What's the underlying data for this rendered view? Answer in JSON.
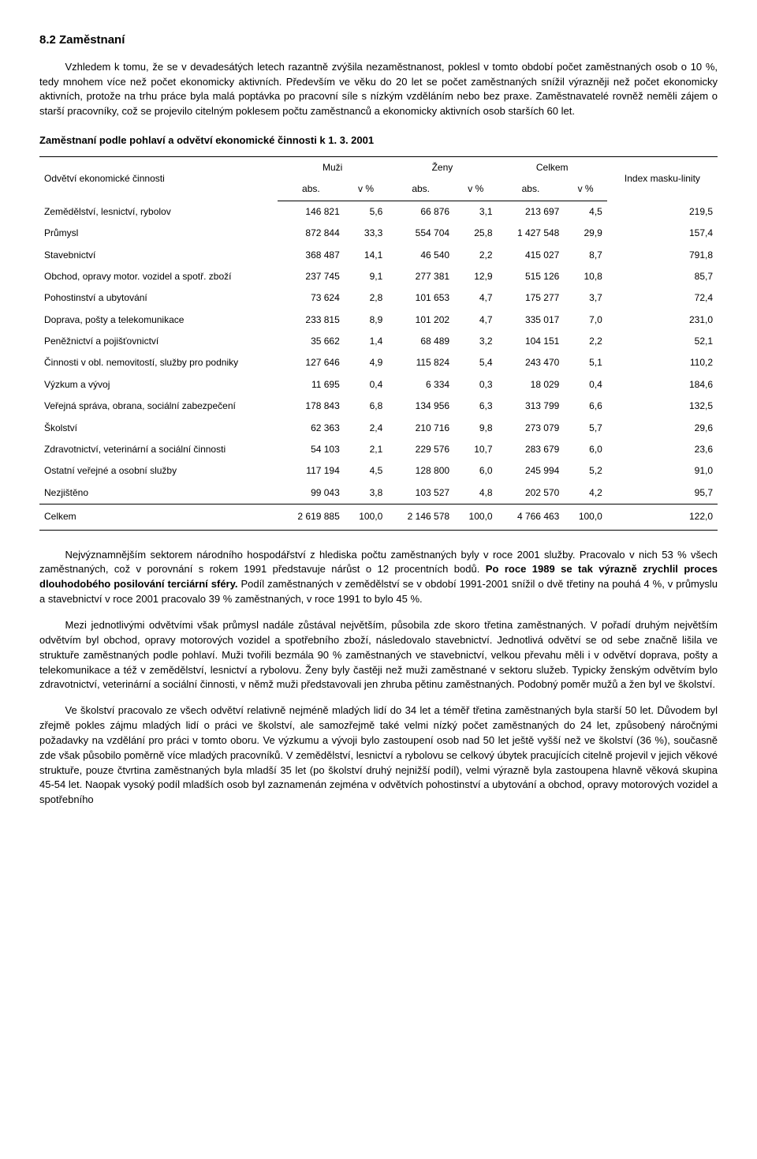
{
  "heading": "8.2 Zaměstnaní",
  "para1_plain": "Vzhledem k tomu, že se v devadesátých letech razantně zvýšila nezaměstnanost, poklesl v tomto období počet zaměstnaných osob o 10 %, tedy mnohem více než počet ekonomicky aktivních. Především ve věku do 20 let se počet zaměstnaných snížil výrazněji než počet ekonomicky aktivních, protože na trhu práce byla malá poptávka po pracovní síle s nízkým vzděláním nebo bez praxe. Zaměstnavatelé rovněž neměli zájem o starší pracovníky, což se projevilo citelným poklesem počtu zaměstnanců a ekonomicky aktivních osob starších 60 let.",
  "table_title": "Zaměstnaní podle pohlaví a odvětví ekonomické činnosti k 1. 3. 2001",
  "table": {
    "col_label": "Odvětví ekonomické činnosti",
    "group_headers": [
      "Muži",
      "Ženy",
      "Celkem"
    ],
    "sub_headers": [
      "abs.",
      "v %",
      "abs.",
      "v %",
      "abs.",
      "v %"
    ],
    "index_header": "Index masku-linity",
    "rows": [
      {
        "label": "Zemědělství, lesnictví, rybolov",
        "cells": [
          "146 821",
          "5,6",
          "66 876",
          "3,1",
          "213 697",
          "4,5",
          "219,5"
        ]
      },
      {
        "label": "Průmysl",
        "cells": [
          "872 844",
          "33,3",
          "554 704",
          "25,8",
          "1 427 548",
          "29,9",
          "157,4"
        ]
      },
      {
        "label": "Stavebnictví",
        "cells": [
          "368 487",
          "14,1",
          "46 540",
          "2,2",
          "415 027",
          "8,7",
          "791,8"
        ]
      },
      {
        "label": "Obchod, opravy motor. vozidel a spotř. zboží",
        "cells": [
          "237 745",
          "9,1",
          "277 381",
          "12,9",
          "515 126",
          "10,8",
          "85,7"
        ]
      },
      {
        "label": "Pohostinství a ubytování",
        "cells": [
          "73 624",
          "2,8",
          "101 653",
          "4,7",
          "175 277",
          "3,7",
          "72,4"
        ]
      },
      {
        "label": "Doprava, pošty a telekomunikace",
        "cells": [
          "233 815",
          "8,9",
          "101 202",
          "4,7",
          "335 017",
          "7,0",
          "231,0"
        ]
      },
      {
        "label": "Peněžnictví a pojišťovnictví",
        "cells": [
          "35 662",
          "1,4",
          "68 489",
          "3,2",
          "104 151",
          "2,2",
          "52,1"
        ]
      },
      {
        "label": "Činnosti v obl. nemovitostí, služby pro podniky",
        "cells": [
          "127 646",
          "4,9",
          "115 824",
          "5,4",
          "243 470",
          "5,1",
          "110,2"
        ]
      },
      {
        "label": "Výzkum a vývoj",
        "cells": [
          "11 695",
          "0,4",
          "6 334",
          "0,3",
          "18 029",
          "0,4",
          "184,6"
        ]
      },
      {
        "label": "Veřejná správa, obrana, sociální zabezpečení",
        "cells": [
          "178 843",
          "6,8",
          "134 956",
          "6,3",
          "313 799",
          "6,6",
          "132,5"
        ]
      },
      {
        "label": "Školství",
        "cells": [
          "62 363",
          "2,4",
          "210 716",
          "9,8",
          "273 079",
          "5,7",
          "29,6"
        ]
      },
      {
        "label": "Zdravotnictví, veterinární a sociální činnosti",
        "cells": [
          "54 103",
          "2,1",
          "229 576",
          "10,7",
          "283 679",
          "6,0",
          "23,6"
        ]
      },
      {
        "label": "Ostatní veřejné a osobní služby",
        "cells": [
          "117 194",
          "4,5",
          "128 800",
          "6,0",
          "245 994",
          "5,2",
          "91,0"
        ]
      },
      {
        "label": "Nezjištěno",
        "cells": [
          "99 043",
          "3,8",
          "103 527",
          "4,8",
          "202 570",
          "4,2",
          "95,7"
        ]
      }
    ],
    "total": {
      "label": "Celkem",
      "cells": [
        "2 619 885",
        "100,0",
        "2 146 578",
        "100,0",
        "4 766 463",
        "100,0",
        "122,0"
      ]
    }
  },
  "para2_pre": "Nejvýznamnějším sektorem národního hospodářství z hlediska počtu zaměstnaných byly v roce 2001 služby. Pracovalo v nich 53 % všech zaměstnaných, což v porovnání s rokem 1991 představuje nárůst o 12 procentních bodů. ",
  "para2_bold": "Po roce 1989 se tak výrazně zrychlil proces dlouhodobého posilování terciární sféry.",
  "para2_post": " Podíl zaměstnaných v zemědělství se v období 1991-2001 snížil o dvě třetiny na pouhá 4 %, v průmyslu a stavebnictví v roce 2001 pracovalo 39 % zaměstnaných, v roce 1991 to bylo 45 %.",
  "para3": "Mezi jednotlivými odvětvími však průmysl nadále zůstával největším, působila zde skoro třetina zaměstnaných. V pořadí druhým největším odvětvím byl obchod, opravy motorových vozidel a spotřebního zboží, následovalo stavebnictví. Jednotlivá odvětví se od sebe značně lišila ve struktuře zaměstnaných podle pohlaví. Muži tvořili bezmála 90 % zaměstnaných ve stavebnictví, velkou převahu měli i v odvětví doprava, pošty a telekomunikace a též v zemědělství, lesnictví a rybolovu. Ženy byly častěji než muži zaměstnané v sektoru služeb. Typicky ženským odvětvím bylo zdravotnictví, veterinární a sociální činnosti, v němž muži představovali jen zhruba pětinu zaměstnaných. Podobný poměr mužů a žen byl ve školství.",
  "para4": "Ve školství pracovalo ze všech odvětví relativně nejméně mladých lidí do 34 let a téměř třetina zaměstnaných byla starší 50 let. Důvodem byl zřejmě pokles zájmu mladých lidí o práci ve školství, ale samozřejmě také velmi nízký počet zaměstnaných do 24 let, způsobený náročnými požadavky na vzdělání pro práci v tomto oboru. Ve výzkumu a vývoji bylo zastoupení osob nad 50 let ještě vyšší než ve školství (36 %), současně zde však působilo poměrně více mladých pracovníků. V zemědělství, lesnictví a rybolovu se celkový úbytek pracujících citelně projevil v jejich věkové struktuře, pouze čtvrtina zaměstnaných byla mladší 35 let (po školství druhý nejnižší podíl), velmi výrazně byla zastoupena hlavně věková skupina 45-54 let. Naopak vysoký podíl mladších osob byl zaznamenán zejména v odvětvích pohostinství a ubytování a obchod, opravy motorových vozidel a spotřebního"
}
